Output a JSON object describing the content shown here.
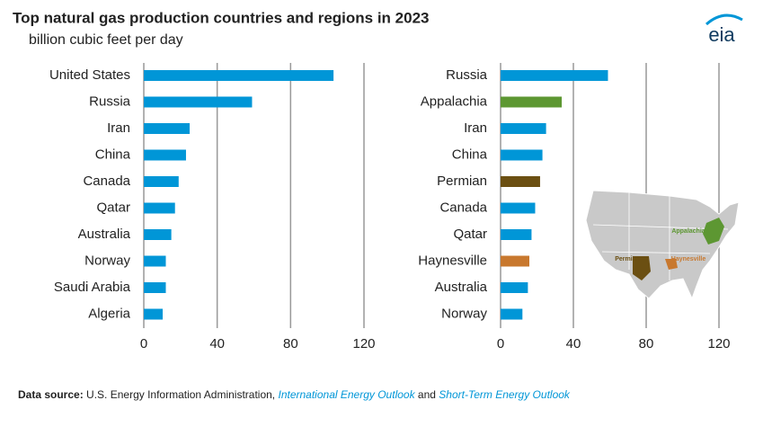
{
  "title": "Top natural gas production countries and regions in 2023",
  "subtitle": "billion cubic feet per day",
  "logo": "eia",
  "source": {
    "label": "Data source:",
    "text": "U.S. Energy Information Administration,",
    "link1": "International Energy Outlook",
    "and": "and",
    "link2": "Short-Term Energy Outlook"
  },
  "map": {
    "labels": [
      "Appalachia",
      "Permian",
      "Haynesville"
    ],
    "colors": [
      "#5d9732",
      "#6b4f12",
      "#c8782e"
    ]
  },
  "chart_data": [
    {
      "type": "bar",
      "orientation": "horizontal",
      "categories": [
        "United States",
        "Russia",
        "Iran",
        "China",
        "Canada",
        "Qatar",
        "Australia",
        "Norway",
        "Saudi Arabia",
        "Algeria"
      ],
      "values": [
        103.4,
        59,
        25,
        23,
        19,
        17,
        15,
        12,
        12,
        10.3
      ],
      "colors": [
        "#0096d7",
        "#0096d7",
        "#0096d7",
        "#0096d7",
        "#0096d7",
        "#0096d7",
        "#0096d7",
        "#0096d7",
        "#0096d7",
        "#0096d7"
      ],
      "xlim": [
        0,
        120
      ],
      "xticks": [
        0,
        40,
        80,
        120
      ],
      "grid": true
    },
    {
      "type": "bar",
      "orientation": "horizontal",
      "categories": [
        "Russia",
        "Appalachia",
        "Iran",
        "China",
        "Permian",
        "Canada",
        "Qatar",
        "Haynesville",
        "Australia",
        "Norway"
      ],
      "values": [
        59,
        33.6,
        25,
        23,
        21.7,
        19,
        17,
        15.8,
        15,
        12
      ],
      "colors": [
        "#0096d7",
        "#5d9732",
        "#0096d7",
        "#0096d7",
        "#6b4f12",
        "#0096d7",
        "#0096d7",
        "#c8782e",
        "#0096d7",
        "#0096d7"
      ],
      "xlim": [
        0,
        120
      ],
      "xticks": [
        0,
        40,
        80,
        120
      ],
      "grid": true
    }
  ]
}
